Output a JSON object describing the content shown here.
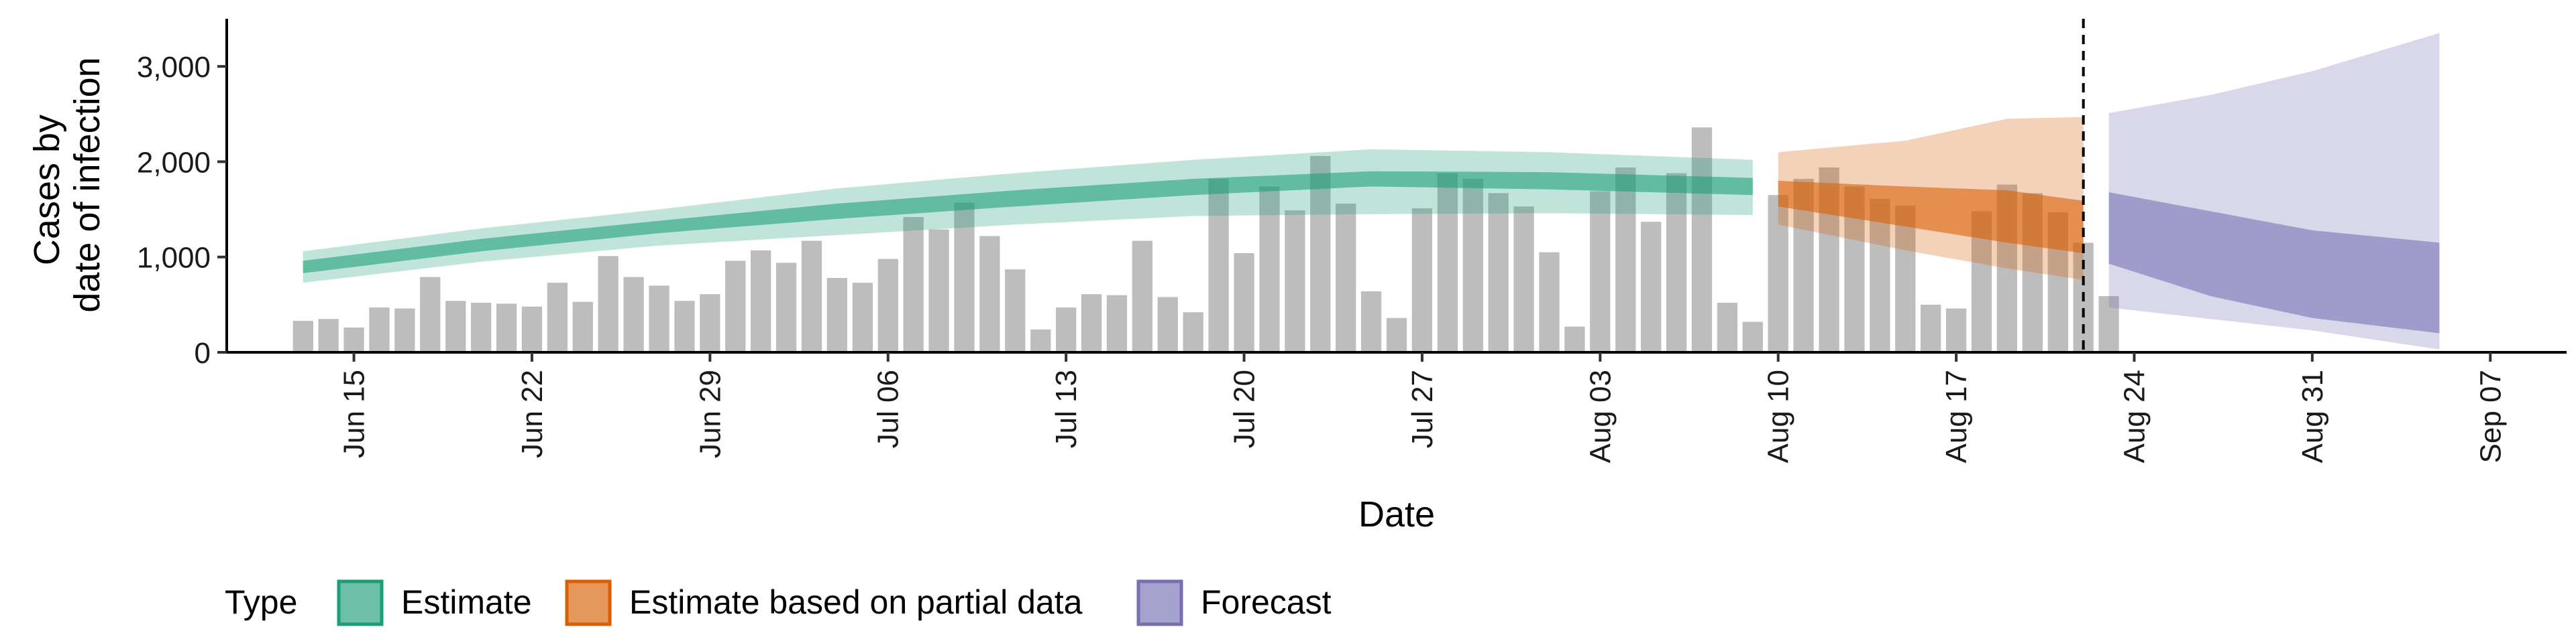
{
  "chart_data": {
    "type": "bar",
    "xlabel": "Date",
    "ylabel_lines": [
      "Cases by",
      "date of infection"
    ],
    "ylim": [
      0,
      3500
    ],
    "y_ticks": [
      0,
      1000,
      2000,
      3000
    ],
    "y_tick_labels": [
      "0",
      "1,000",
      "2,000",
      "3,000"
    ],
    "x_range": [
      "2020-06-10",
      "2020-09-10"
    ],
    "x_ticks": [
      "2020-06-15",
      "2020-06-22",
      "2020-06-29",
      "2020-07-06",
      "2020-07-13",
      "2020-07-20",
      "2020-07-27",
      "2020-08-03",
      "2020-08-10",
      "2020-08-17",
      "2020-08-24",
      "2020-08-31",
      "2020-09-07"
    ],
    "x_tick_labels": [
      "Jun 15",
      "Jun 22",
      "Jun 29",
      "Jul 06",
      "Jul 13",
      "Jul 20",
      "Jul 27",
      "Aug 03",
      "Aug 10",
      "Aug 17",
      "Aug 24",
      "Aug 31",
      "Sep 07"
    ],
    "vline_date": "2020-08-22",
    "reported_cases": {
      "start_date": "2020-06-13",
      "values": [
        330,
        350,
        260,
        470,
        460,
        790,
        540,
        520,
        510,
        480,
        730,
        530,
        1010,
        790,
        700,
        540,
        610,
        960,
        1070,
        940,
        1170,
        780,
        730,
        980,
        1420,
        1290,
        1570,
        1220,
        870,
        240,
        470,
        610,
        600,
        1170,
        580,
        420,
        1820,
        1040,
        1740,
        1490,
        2060,
        1560,
        640,
        360,
        1510,
        1880,
        1820,
        1670,
        1530,
        1050,
        270,
        1690,
        1940,
        1370,
        1880,
        2360,
        520,
        320,
        1650,
        1820,
        1940,
        1740,
        1610,
        1540,
        500,
        460,
        1480,
        1760,
        1670,
        1470,
        1150,
        590
      ]
    },
    "series": [
      {
        "name": "Estimate",
        "color": "#1b9e77",
        "points": [
          {
            "date": "2020-06-13",
            "lower90": 730,
            "lower50": 830,
            "upper50": 960,
            "upper90": 1060
          },
          {
            "date": "2020-06-20",
            "lower90": 950,
            "lower50": 1060,
            "upper50": 1190,
            "upper90": 1300
          },
          {
            "date": "2020-06-27",
            "lower90": 1120,
            "lower50": 1250,
            "upper50": 1380,
            "upper90": 1500
          },
          {
            "date": "2020-07-04",
            "lower90": 1230,
            "lower50": 1400,
            "upper50": 1560,
            "upper90": 1720
          },
          {
            "date": "2020-07-11",
            "lower90": 1340,
            "lower50": 1530,
            "upper50": 1700,
            "upper90": 1880
          },
          {
            "date": "2020-07-18",
            "lower90": 1430,
            "lower50": 1650,
            "upper50": 1820,
            "upper90": 2020
          },
          {
            "date": "2020-07-25",
            "lower90": 1450,
            "lower50": 1740,
            "upper50": 1900,
            "upper90": 2130
          },
          {
            "date": "2020-08-01",
            "lower90": 1460,
            "lower50": 1710,
            "upper50": 1890,
            "upper90": 2100
          },
          {
            "date": "2020-08-09",
            "lower90": 1440,
            "lower50": 1650,
            "upper50": 1830,
            "upper90": 2020
          }
        ]
      },
      {
        "name": "Estimate based on partial data",
        "color": "#d95f02",
        "points": [
          {
            "date": "2020-08-10",
            "lower90": 1340,
            "lower50": 1530,
            "upper50": 1800,
            "upper90": 2100
          },
          {
            "date": "2020-08-15",
            "lower90": 1070,
            "lower50": 1320,
            "upper50": 1740,
            "upper90": 2220
          },
          {
            "date": "2020-08-19",
            "lower90": 880,
            "lower50": 1150,
            "upper50": 1700,
            "upper90": 2450
          },
          {
            "date": "2020-08-22",
            "lower90": 760,
            "lower50": 1040,
            "upper50": 1590,
            "upper90": 2470
          }
        ]
      },
      {
        "name": "Forecast",
        "color": "#7570b3",
        "points": [
          {
            "date": "2020-08-23",
            "lower90": 470,
            "lower50": 930,
            "upper50": 1680,
            "upper90": 2510
          },
          {
            "date": "2020-08-27",
            "lower90": 350,
            "lower50": 590,
            "upper50": 1480,
            "upper90": 2700
          },
          {
            "date": "2020-08-31",
            "lower90": 230,
            "lower50": 360,
            "upper50": 1280,
            "upper90": 2950
          },
          {
            "date": "2020-09-05",
            "lower90": 30,
            "lower50": 200,
            "upper50": 1150,
            "upper90": 3350
          }
        ]
      }
    ],
    "legend": {
      "title": "Type",
      "position": "bottom",
      "items": [
        "Estimate",
        "Estimate based on partial data",
        "Forecast"
      ]
    },
    "colors": {
      "bar": "#bdbdbd",
      "axis": "#000000",
      "vline": "#000000"
    }
  }
}
